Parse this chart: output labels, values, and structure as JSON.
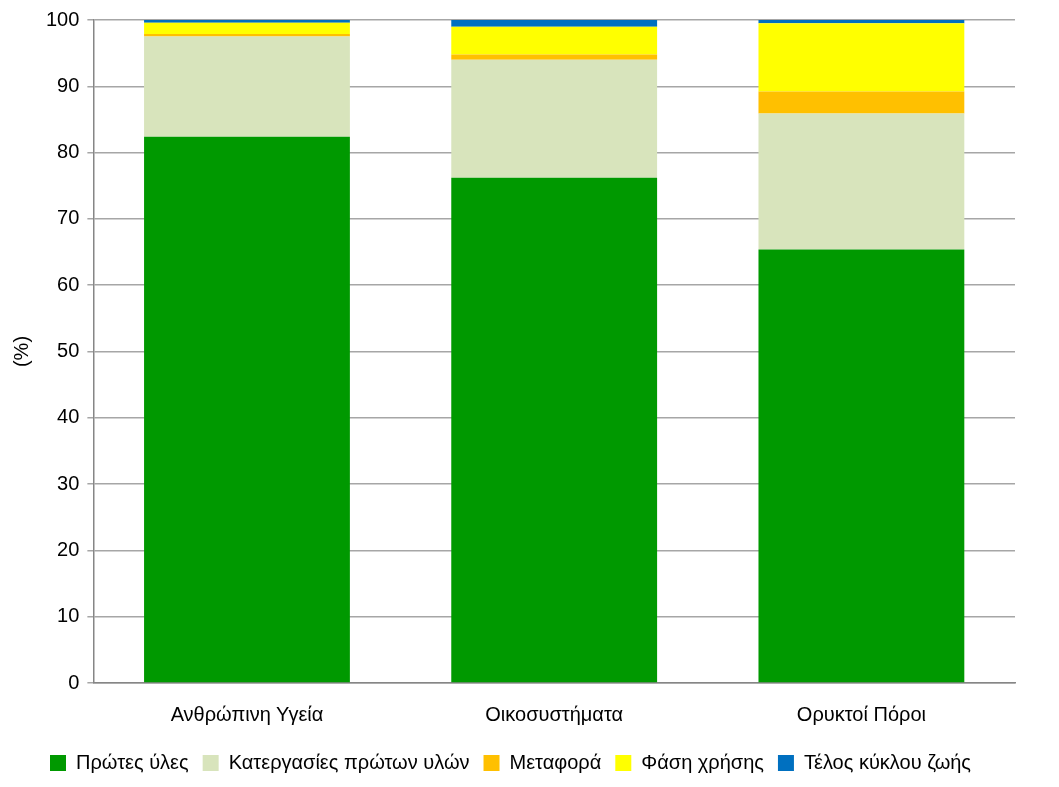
{
  "chart_data": {
    "type": "bar",
    "stacked": true,
    "ylabel": "(%)",
    "categories": [
      "Ανθρώπινη Υγεία",
      "Οικοσυστήματα",
      "Ορυκτοί Πόροι"
    ],
    "series": [
      {
        "name": "Πρώτες ύλες",
        "color": "#009900",
        "values": [
          82.4,
          76.2,
          65.4
        ]
      },
      {
        "name": "Κατεργασίες πρώτων υλών",
        "color": "#d8e4bc",
        "values": [
          15.1,
          17.8,
          20.5
        ]
      },
      {
        "name": "Μεταφορά",
        "color": "#ffc000",
        "values": [
          0.4,
          0.8,
          3.3
        ]
      },
      {
        "name": "Φάση χρήσης",
        "color": "#ffff00",
        "values": [
          1.7,
          4.2,
          10.3
        ]
      },
      {
        "name": "Τέλος κύκλου ζωής",
        "color": "#0070c0",
        "values": [
          0.4,
          1.0,
          0.5
        ]
      }
    ],
    "ylim": [
      0,
      100
    ],
    "yticks": [
      0,
      10,
      20,
      30,
      40,
      50,
      60,
      70,
      80,
      90,
      100
    ],
    "grid": "y",
    "legend": "bottom"
  }
}
